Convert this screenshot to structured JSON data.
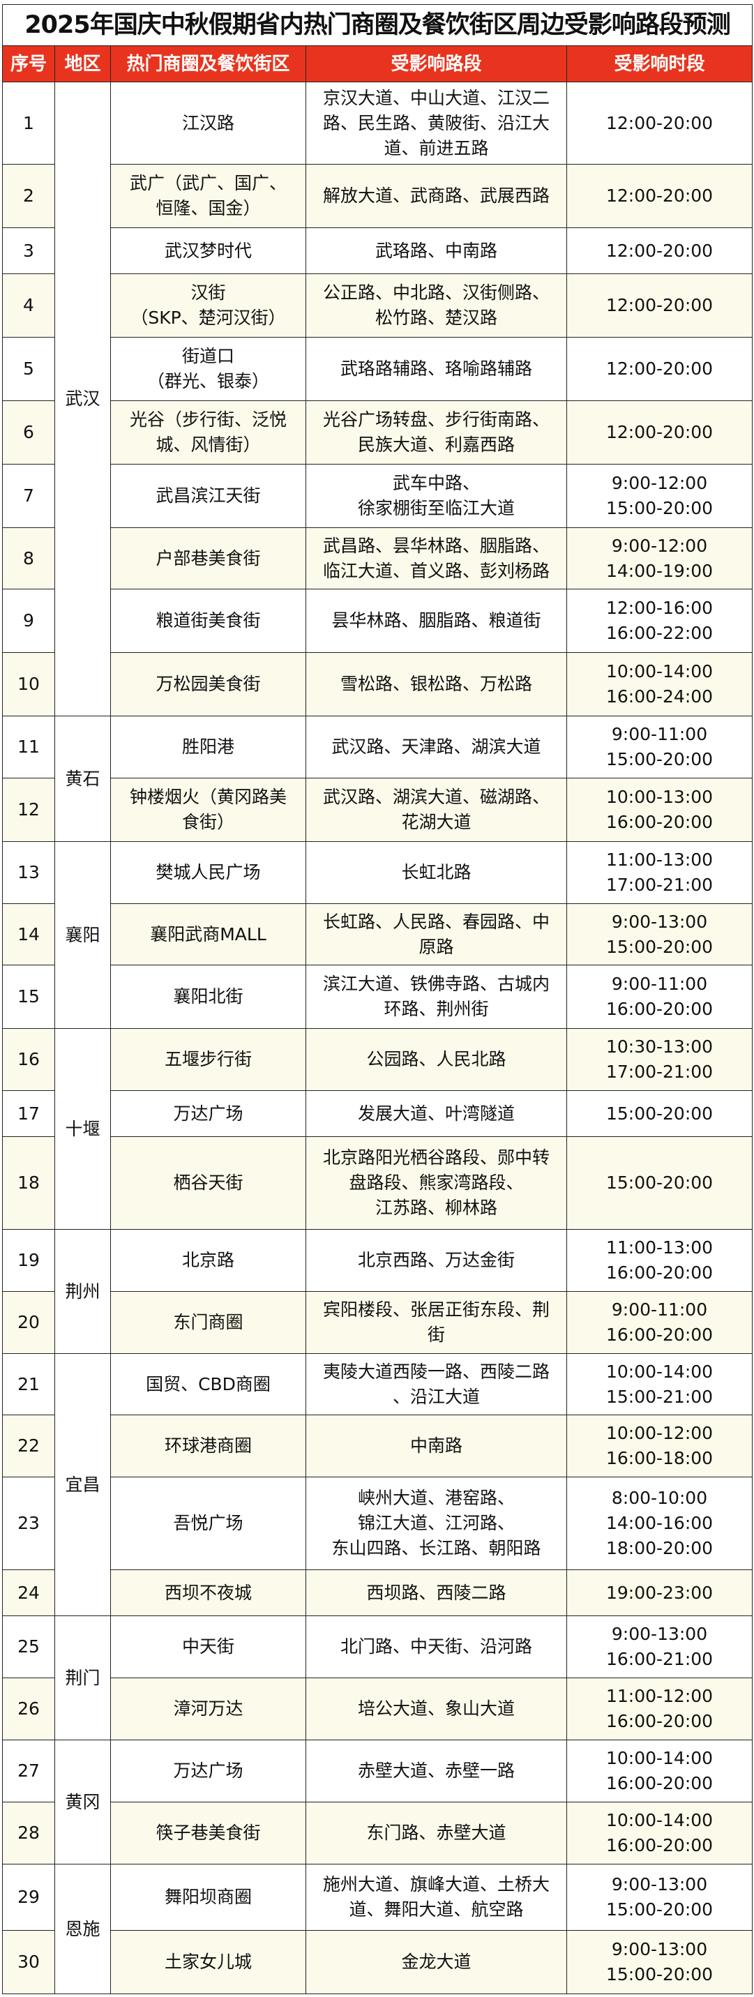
{
  "title": "2025年国庆中秋假期省内热门商圈及餐饮街区周边受影响路段预测",
  "colors": {
    "header_bg": "#e8341e",
    "even_row_bg": "#fcfaea"
  },
  "columns": [
    "序号",
    "地区",
    "热门商圈及餐饮街区",
    "受影响路段",
    "受影响时段"
  ],
  "regions": [
    {
      "name": "武汉",
      "rows": 10
    },
    {
      "name": "黄石",
      "rows": 2
    },
    {
      "name": "襄阳",
      "rows": 3
    },
    {
      "name": "十堰",
      "rows": 3
    },
    {
      "name": "荆州",
      "rows": 2
    },
    {
      "name": "宜昌",
      "rows": 4
    },
    {
      "name": "荆门",
      "rows": 2
    },
    {
      "name": "黄冈",
      "rows": 2
    },
    {
      "name": "恩施",
      "rows": 2
    }
  ],
  "rows": [
    {
      "no": "1",
      "area": "江汉路",
      "roads": "京汉大道、中山大道、江汉二\n路、民生路、黄陂街、沿江大\n道、前进五路",
      "time": "12:00-20:00"
    },
    {
      "no": "2",
      "area": "武广（武广、国广、\n恒隆、国金）",
      "roads": "解放大道、武商路、武展西路",
      "time": "12:00-20:00"
    },
    {
      "no": "3",
      "area": "武汉梦时代",
      "roads": "武珞路、中南路",
      "time": "12:00-20:00"
    },
    {
      "no": "4",
      "area": "汉街\n（SKP、楚河汉街）",
      "roads": "公正路、中北路、汉街侧路、\n松竹路、楚汉路",
      "time": "12:00-20:00"
    },
    {
      "no": "5",
      "area": "街道口\n（群光、银泰）",
      "roads": "武珞路辅路、珞喻路辅路",
      "time": "12:00-20:00"
    },
    {
      "no": "6",
      "area": "光谷（步行街、泛悦\n城、风情街）",
      "roads": "光谷广场转盘、步行街南路、\n民族大道、利嘉西路",
      "time": "12:00-20:00"
    },
    {
      "no": "7",
      "area": "武昌滨江天街",
      "roads": "武车中路、\n徐家棚街至临江大道",
      "time": "9:00-12:00\n15:00-20:00"
    },
    {
      "no": "8",
      "area": "户部巷美食街",
      "roads": "武昌路、昙华林路、胭脂路、\n临江大道、首义路、彭刘杨路",
      "time": "9:00-12:00\n14:00-19:00"
    },
    {
      "no": "9",
      "area": "粮道街美食街",
      "roads": "昙华林路、胭脂路、粮道街",
      "time": "12:00-16:00\n16:00-22:00"
    },
    {
      "no": "10",
      "area": "万松园美食街",
      "roads": "雪松路、银松路、万松路",
      "time": "10:00-14:00\n16:00-24:00"
    },
    {
      "no": "11",
      "area": "胜阳港",
      "roads": "武汉路、天津路、湖滨大道",
      "time": "9:00-11:00\n15:00-20:00"
    },
    {
      "no": "12",
      "area": "钟楼烟火（黄冈路美\n食街）",
      "roads": "武汉路、湖滨大道、磁湖路、\n花湖大道",
      "time": "10:00-13:00\n16:00-20:00"
    },
    {
      "no": "13",
      "area": "樊城人民广场",
      "roads": "长虹北路",
      "time": "11:00-13:00\n17:00-21:00"
    },
    {
      "no": "14",
      "area": "襄阳武商MALL",
      "roads": "长虹路、人民路、春园路、中\n原路",
      "time": "9:00-13:00\n15:00-20:00"
    },
    {
      "no": "15",
      "area": "襄阳北街",
      "roads": "滨江大道、铁佛寺路、古城内\n环路、荆州街",
      "time": "9:00-11:00\n16:00-20:00"
    },
    {
      "no": "16",
      "area": "五堰步行街",
      "roads": "公园路、人民北路",
      "time": "10:30-13:00\n17:00-21:00"
    },
    {
      "no": "17",
      "area": "万达广场",
      "roads": "发展大道、叶湾隧道",
      "time": "15:00-20:00"
    },
    {
      "no": "18",
      "area": "栖谷天街",
      "roads": "北京路阳光栖谷路段、郧中转\n盘路段、熊家湾路段、\n江苏路、柳林路",
      "time": "15:00-20:00"
    },
    {
      "no": "19",
      "area": "北京路",
      "roads": "北京西路、万达金街",
      "time": "11:00-13:00\n16:00-20:00"
    },
    {
      "no": "20",
      "area": "东门商圈",
      "roads": "宾阳楼段、张居正街东段、荆\n街",
      "time": "9:00-11:00\n16:00-20:00"
    },
    {
      "no": "21",
      "area": "国贸、CBD商圈",
      "roads": "夷陵大道西陵一路、西陵二路\n、沿江大道",
      "time": "10:00-14:00\n15:00-21:00"
    },
    {
      "no": "22",
      "area": "环球港商圈",
      "roads": "中南路",
      "time": "10:00-12:00\n16:00-18:00"
    },
    {
      "no": "23",
      "area": "吾悦广场",
      "roads": "峡州大道、港窑路、\n锦江大道、江河路、\n东山四路、长江路、朝阳路",
      "time": "8:00-10:00\n14:00-16:00\n18:00-20:00"
    },
    {
      "no": "24",
      "area": "西坝不夜城",
      "roads": "西坝路、西陵二路",
      "time": "19:00-23:00"
    },
    {
      "no": "25",
      "area": "中天街",
      "roads": "北门路、中天街、沿河路",
      "time": "9:00-13:00\n16:00-21:00"
    },
    {
      "no": "26",
      "area": "漳河万达",
      "roads": "培公大道、象山大道",
      "time": "11:00-12:00\n16:00-20:00"
    },
    {
      "no": "27",
      "area": "万达广场",
      "roads": "赤壁大道、赤壁一路",
      "time": "10:00-14:00\n16:00-20:00"
    },
    {
      "no": "28",
      "area": "筷子巷美食街",
      "roads": "东门路、赤壁大道",
      "time": "10:00-14:00\n16:00-20:00"
    },
    {
      "no": "29",
      "area": "舞阳坝商圈",
      "roads": "施州大道、旗峰大道、土桥大\n道、舞阳大道、航空路",
      "time": "9:00-13:00\n15:00-20:00"
    },
    {
      "no": "30",
      "area": "土家女儿城",
      "roads": "金龙大道",
      "time": "9:00-13:00\n15:00-20:00"
    }
  ]
}
